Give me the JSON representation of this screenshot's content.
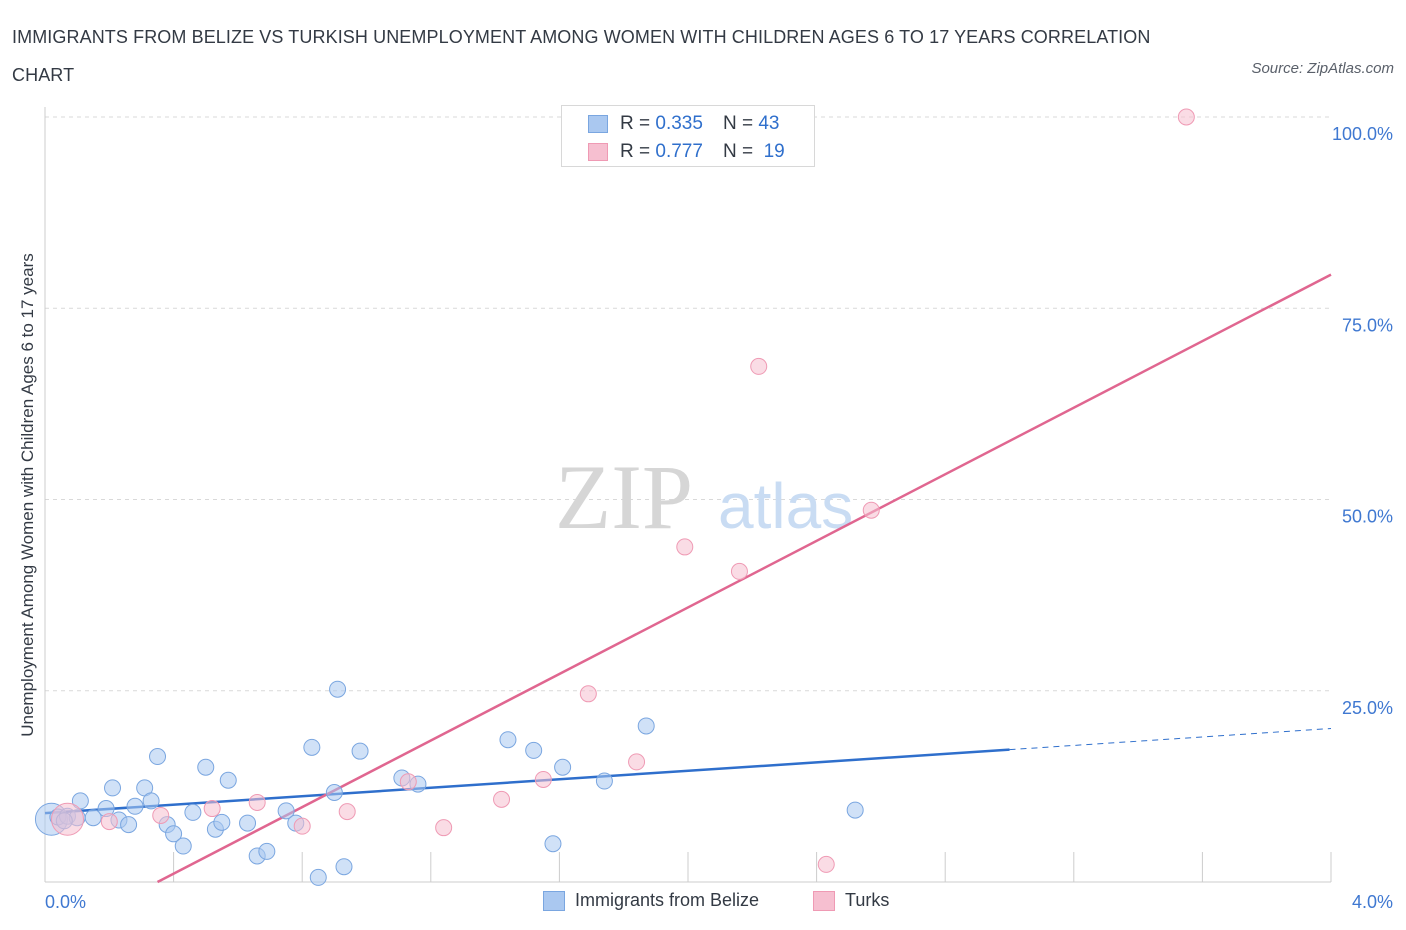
{
  "title": "IMMIGRANTS FROM BELIZE VS TURKISH UNEMPLOYMENT AMONG WOMEN WITH CHILDREN AGES 6 TO 17 YEARS CORRELATION CHART",
  "source": "Source: ZipAtlas.com",
  "watermark": {
    "zip": "ZIP",
    "atlas": "atlas"
  },
  "legend": {
    "series1": {
      "r_label": "R =",
      "r": "0.335",
      "n_label": "N =",
      "n": "43"
    },
    "series2": {
      "r_label": "R =",
      "r": "0.777",
      "n_label": "N =",
      "n": "19"
    }
  },
  "colors": {
    "blue_fill": "#aac8f0",
    "blue_stroke": "#7aa6e0",
    "blue_line": "#2f6fcc",
    "pink_fill": "#f6bfd0",
    "pink_stroke": "#ef9ab4",
    "pink_line": "#e06690",
    "grid": "#d9d9d9",
    "axis_text": "#3f78d1"
  },
  "chart_data": {
    "type": "scatter",
    "title": "IMMIGRANTS FROM BELIZE VS TURKISH UNEMPLOYMENT AMONG WOMEN WITH CHILDREN AGES 6 TO 17 YEARS CORRELATION CHART",
    "xlabel": "",
    "ylabel": "Unemployment Among Women with Children Ages 6 to 17 years",
    "xlim": [
      0,
      4.0
    ],
    "ylim": [
      0,
      100
    ],
    "x_tick_labels": [
      "0.0%",
      "4.0%"
    ],
    "y_tick_labels": [
      "25.0%",
      "50.0%",
      "75.0%",
      "100.0%"
    ],
    "y_ticks": [
      25,
      50,
      75,
      100
    ],
    "series": [
      {
        "name": "Immigrants from Belize",
        "color": "blue",
        "trend": {
          "x0": 0.0,
          "y0": 9.0,
          "x1": 3.0,
          "y1": 17.3,
          "dash_to_x": 4.0
        },
        "points": [
          {
            "x": 0.02,
            "y": 8.2,
            "big": 1
          },
          {
            "x": 0.04,
            "y": 8.5
          },
          {
            "x": 0.07,
            "y": 8.6
          },
          {
            "x": 0.1,
            "y": 8.4
          },
          {
            "x": 0.11,
            "y": 10.6
          },
          {
            "x": 0.15,
            "y": 8.4
          },
          {
            "x": 0.19,
            "y": 9.6
          },
          {
            "x": 0.21,
            "y": 12.3
          },
          {
            "x": 0.23,
            "y": 8.1
          },
          {
            "x": 0.26,
            "y": 7.5
          },
          {
            "x": 0.28,
            "y": 9.9
          },
          {
            "x": 0.31,
            "y": 12.3
          },
          {
            "x": 0.33,
            "y": 10.6
          },
          {
            "x": 0.35,
            "y": 16.4
          },
          {
            "x": 0.38,
            "y": 7.5
          },
          {
            "x": 0.4,
            "y": 6.3
          },
          {
            "x": 0.43,
            "y": 4.7
          },
          {
            "x": 0.46,
            "y": 9.1
          },
          {
            "x": 0.5,
            "y": 15.0
          },
          {
            "x": 0.53,
            "y": 6.9
          },
          {
            "x": 0.55,
            "y": 7.8
          },
          {
            "x": 0.57,
            "y": 13.3
          },
          {
            "x": 0.63,
            "y": 7.7
          },
          {
            "x": 0.66,
            "y": 3.4
          },
          {
            "x": 0.69,
            "y": 4.0
          },
          {
            "x": 0.75,
            "y": 9.3
          },
          {
            "x": 0.78,
            "y": 7.7
          },
          {
            "x": 0.83,
            "y": 17.6
          },
          {
            "x": 0.85,
            "y": 0.6
          },
          {
            "x": 0.9,
            "y": 11.7
          },
          {
            "x": 0.91,
            "y": 25.2
          },
          {
            "x": 0.93,
            "y": 2.0
          },
          {
            "x": 0.98,
            "y": 17.1
          },
          {
            "x": 1.11,
            "y": 13.6
          },
          {
            "x": 1.16,
            "y": 12.8
          },
          {
            "x": 1.44,
            "y": 18.6
          },
          {
            "x": 1.52,
            "y": 17.2
          },
          {
            "x": 1.58,
            "y": 5.0
          },
          {
            "x": 1.61,
            "y": 15.0
          },
          {
            "x": 1.74,
            "y": 13.2
          },
          {
            "x": 1.87,
            "y": 20.4
          },
          {
            "x": 2.52,
            "y": 9.4
          },
          {
            "x": 0.06,
            "y": 8.0
          }
        ]
      },
      {
        "name": "Turks",
        "color": "pink",
        "trend": {
          "x0": 0.35,
          "y0": 0.0,
          "x1": 4.0,
          "y1": 79.4
        },
        "points": [
          {
            "x": 0.07,
            "y": 8.2,
            "big": 1
          },
          {
            "x": 0.2,
            "y": 7.9
          },
          {
            "x": 0.36,
            "y": 8.7
          },
          {
            "x": 0.52,
            "y": 9.6
          },
          {
            "x": 0.66,
            "y": 10.4
          },
          {
            "x": 0.8,
            "y": 7.3
          },
          {
            "x": 0.94,
            "y": 9.2
          },
          {
            "x": 1.13,
            "y": 13.1
          },
          {
            "x": 1.24,
            "y": 7.1
          },
          {
            "x": 1.42,
            "y": 10.8
          },
          {
            "x": 1.55,
            "y": 13.4
          },
          {
            "x": 1.69,
            "y": 24.6
          },
          {
            "x": 1.84,
            "y": 15.7
          },
          {
            "x": 1.99,
            "y": 43.8
          },
          {
            "x": 2.16,
            "y": 40.6
          },
          {
            "x": 2.22,
            "y": 67.4
          },
          {
            "x": 2.43,
            "y": 2.3
          },
          {
            "x": 2.57,
            "y": 48.6
          },
          {
            "x": 3.55,
            "y": 100.0
          }
        ]
      }
    ]
  }
}
